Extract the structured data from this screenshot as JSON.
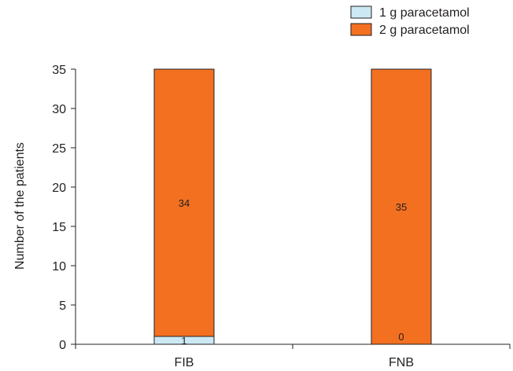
{
  "chart_data": {
    "type": "bar",
    "stacked": true,
    "categories": [
      "FIB",
      "FNB"
    ],
    "series": [
      {
        "name": "1 g paracetamol",
        "values": [
          1,
          0
        ],
        "color": "#cce8f4"
      },
      {
        "name": "2 g paracetamol",
        "values": [
          34,
          35
        ],
        "color": "#f37021"
      }
    ],
    "data_labels": [
      [
        "1",
        "0"
      ],
      [
        "34",
        "35"
      ]
    ],
    "ylabel": "Number of the patients",
    "ylim": [
      0,
      35
    ],
    "yticks": [
      0,
      5,
      10,
      15,
      20,
      25,
      30,
      35
    ],
    "grid": false,
    "legend_position": "top-right"
  }
}
